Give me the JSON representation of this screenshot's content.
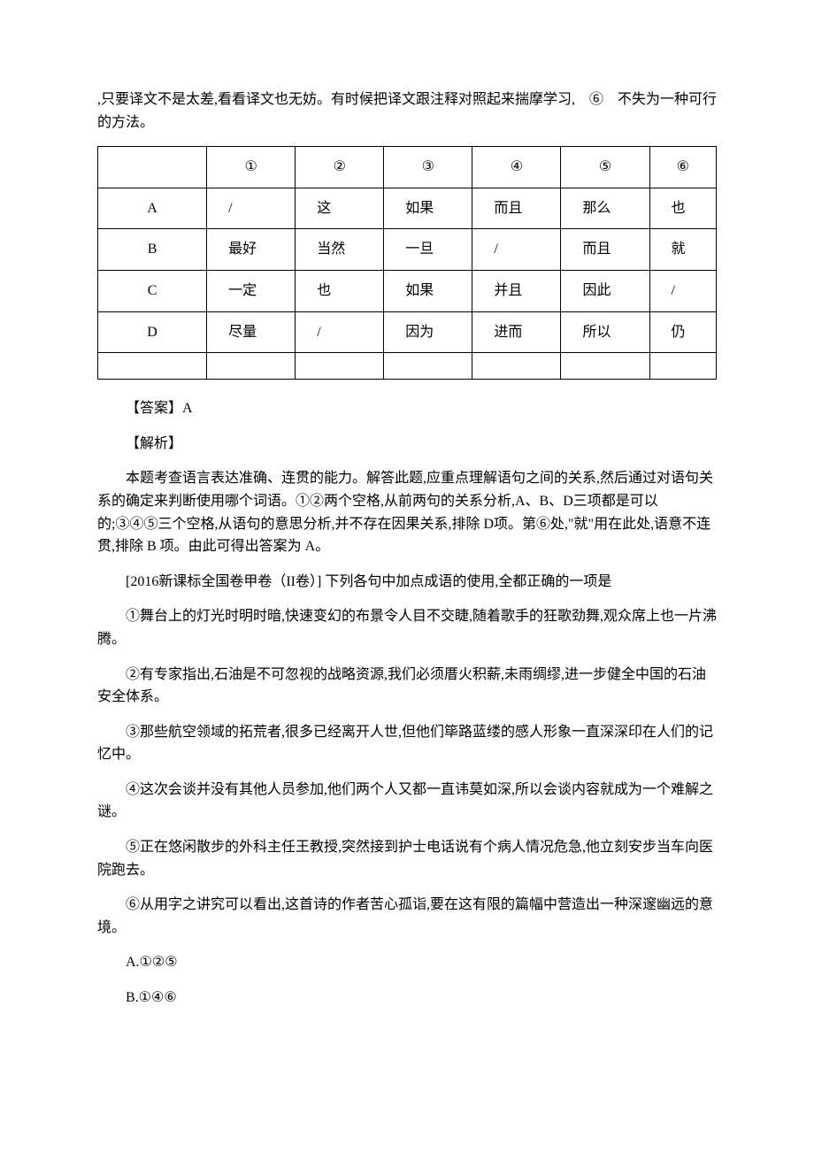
{
  "intro_text": ",只要译文不是太差,看看译文也无妨。有时候把译文跟注释对照起来揣摩学习,　⑥　不失为一种可行的方法。",
  "table": {
    "headers": [
      "",
      "①",
      "②",
      "③",
      "④",
      "⑤",
      "⑥"
    ],
    "rows": [
      {
        "label": "A",
        "cells": [
          "/",
          "这",
          "如果",
          "而且",
          "那么",
          "也"
        ]
      },
      {
        "label": "B",
        "cells": [
          "最好",
          "当然",
          "一旦",
          "/",
          "而且",
          "就"
        ]
      },
      {
        "label": "C",
        "cells": [
          "一定",
          "也",
          "如果",
          "并且",
          "因此",
          "/"
        ]
      },
      {
        "label": "D",
        "cells": [
          "尽量",
          "/",
          "因为",
          "进而",
          "所以",
          "仍"
        ]
      }
    ]
  },
  "answer_label": "【答案】A",
  "analysis_label": "【解析】",
  "analysis_text": "本题考查语言表达准确、连贯的能力。解答此题,应重点理解语句之间的关系,然后通过对语句关系的确定来判断使用哪个词语。①②两个空格,从前两句的关系分析,A、B、D三项都是可以的;③④⑤三个空格,从语句的意思分析,并不存在因果关系,排除 D项。第⑥处,\"就\"用在此处,语意不连贯,排除 B 项。由此可得出答案为 A。",
  "question_source": "[2016新课标全国卷甲卷（II卷）] 下列各句中加点成语的使用,全都正确的一项是",
  "items": {
    "item1": "①舞台上的灯光时明时暗,快速变幻的布景令人目不交睫,随着歌手的狂歌劲舞,观众席上也一片沸腾。",
    "item2": "②有专家指出,石油是不可忽视的战略资源,我们必须厝火积薪,未雨绸缪,进一步健全中国的石油安全体系。",
    "item3": "③那些航空领域的拓荒者,很多已经离开人世,但他们筚路蓝缕的感人形象一直深深印在人们的记忆中。",
    "item4": "④这次会谈并没有其他人员参加,他们两个人又都一直讳莫如深,所以会谈内容就成为一个难解之谜。",
    "item5": "⑤正在悠闲散步的外科主任王教授,突然接到护士电话说有个病人情况危急,他立刻安步当车向医院跑去。",
    "item6": "⑥从用字之讲究可以看出,这首诗的作者苦心孤诣,要在这有限的篇幅中营造出一种深邃幽远的意境。"
  },
  "options": {
    "a": "A.①②⑤",
    "b": "B.①④⑥"
  }
}
